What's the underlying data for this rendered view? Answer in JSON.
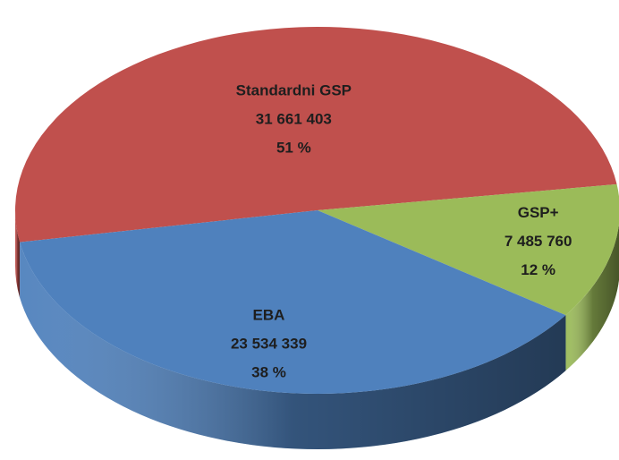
{
  "chart_data": {
    "type": "pie",
    "categories": [
      "Standardni GSP",
      "GSP+",
      "EBA"
    ],
    "values": [
      31661403,
      7485760,
      23534339
    ],
    "value_labels": [
      "31 661 403",
      "7 485 760",
      "23 534 339"
    ],
    "percentages": [
      51,
      12,
      38
    ],
    "percentage_labels": [
      "51 %",
      "12 %",
      "38 %"
    ],
    "colors": [
      "#c0504d",
      "#9bbb59",
      "#4f81bd"
    ]
  }
}
